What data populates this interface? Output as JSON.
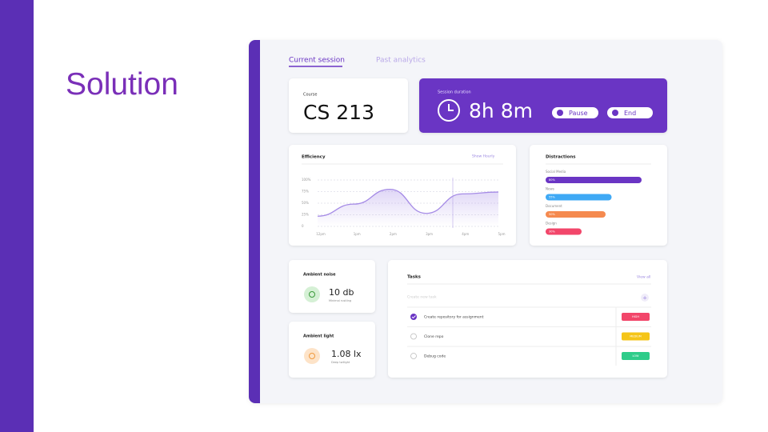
{
  "slide": {
    "title": "Solution"
  },
  "tabs": [
    "Current session",
    "Past analytics"
  ],
  "course": {
    "label": "Course",
    "value": "CS 213"
  },
  "session": {
    "label": "Session duration",
    "value": "8h 8m",
    "buttons": [
      "Pause",
      "End"
    ]
  },
  "chart_data": [
    {
      "type": "line",
      "title": "Efficiency",
      "control": "Show Hourly",
      "categories": [
        "12pm",
        "1pm",
        "2pm",
        "3pm",
        "4pm",
        "5pm"
      ],
      "values": [
        22,
        48,
        80,
        28,
        70,
        74
      ],
      "color": "#a58be6",
      "ylim": [
        0,
        100
      ],
      "yticks": [
        0,
        {
          "value": 25,
          "label": "25%"
        },
        {
          "value": 50,
          "label": "50%"
        },
        {
          "value": 75,
          "label": "75%"
        },
        {
          "value": 100,
          "label": "100%"
        }
      ],
      "grid": true
    },
    {
      "type": "hbar",
      "title": "Distractions",
      "categories": [
        "Social Media",
        "News",
        "Document",
        "Design"
      ],
      "values": [
        80,
        55,
        50,
        30
      ],
      "value_labels": [
        "80%",
        "55%",
        "50%",
        "30%"
      ],
      "colors": [
        "#6a35c4",
        "#3fa9f5",
        "#f58a4f",
        "#f2466a"
      ],
      "xlim": [
        0,
        100
      ]
    }
  ],
  "noise": {
    "label": "Ambient noise",
    "value": "10 db",
    "note": "Minimal rustling"
  },
  "light": {
    "label": "Ambient light",
    "value": "1.08 lx",
    "note": "Deep twilight"
  },
  "tasks": {
    "title": "Tasks",
    "view_all": "View all",
    "placeholder": "Create new task",
    "add": "+",
    "items": [
      {
        "name": "Create repository for assignment",
        "priority": "HIGH",
        "color": "#f2466a",
        "done": true
      },
      {
        "name": "Clone repo",
        "priority": "MEDIUM",
        "color": "#f5c518",
        "done": false
      },
      {
        "name": "Debug code",
        "priority": "LOW",
        "color": "#2ecc8a",
        "done": false
      }
    ]
  }
}
